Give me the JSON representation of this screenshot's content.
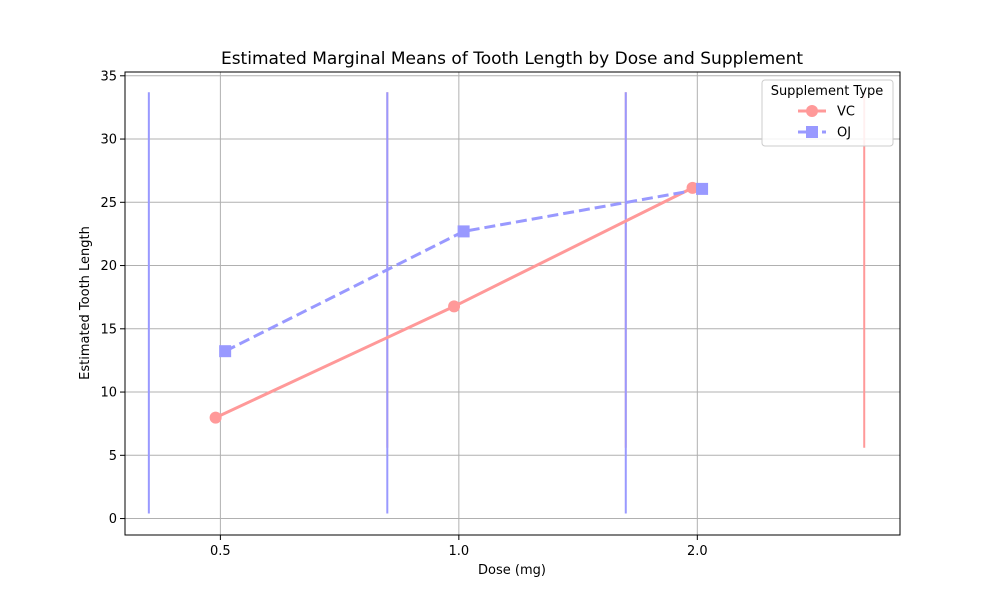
{
  "chart_data": {
    "type": "line",
    "title": "Estimated Marginal Means of Tooth Length by Dose and Supplement",
    "xlabel": "Dose (mg)",
    "ylabel": "Estimated Tooth Length",
    "categories": [
      "0.5",
      "1.0",
      "2.0"
    ],
    "ylim": [
      -1.3,
      35.3
    ],
    "yticks": [
      0,
      5,
      10,
      15,
      20,
      25,
      30,
      35
    ],
    "grid": true,
    "legend": {
      "title": "Supplement Type",
      "placement": "top-right"
    },
    "series": [
      {
        "name": "VC",
        "values": [
          7.98,
          16.77,
          26.14
        ],
        "color": "#ff9999",
        "marker": "circle",
        "linestyle": "solid",
        "errorbars": [
          {
            "x": 0.7,
            "low": 5.6,
            "high": 33.7
          },
          {
            "x": 1.7,
            "low": 5.6,
            "high": 33.7
          },
          {
            "x": 2.7,
            "low": 5.6,
            "high": 33.7
          }
        ]
      },
      {
        "name": "OJ",
        "values": [
          13.23,
          22.7,
          26.06
        ],
        "color": "#9999ff",
        "marker": "square",
        "linestyle": "dashed",
        "errorbars": [
          {
            "x": -0.3,
            "low": 0.4,
            "high": 33.7
          },
          {
            "x": 0.7,
            "low": 0.4,
            "high": 33.7
          },
          {
            "x": 1.7,
            "low": 0.4,
            "high": 33.7
          }
        ]
      }
    ]
  }
}
